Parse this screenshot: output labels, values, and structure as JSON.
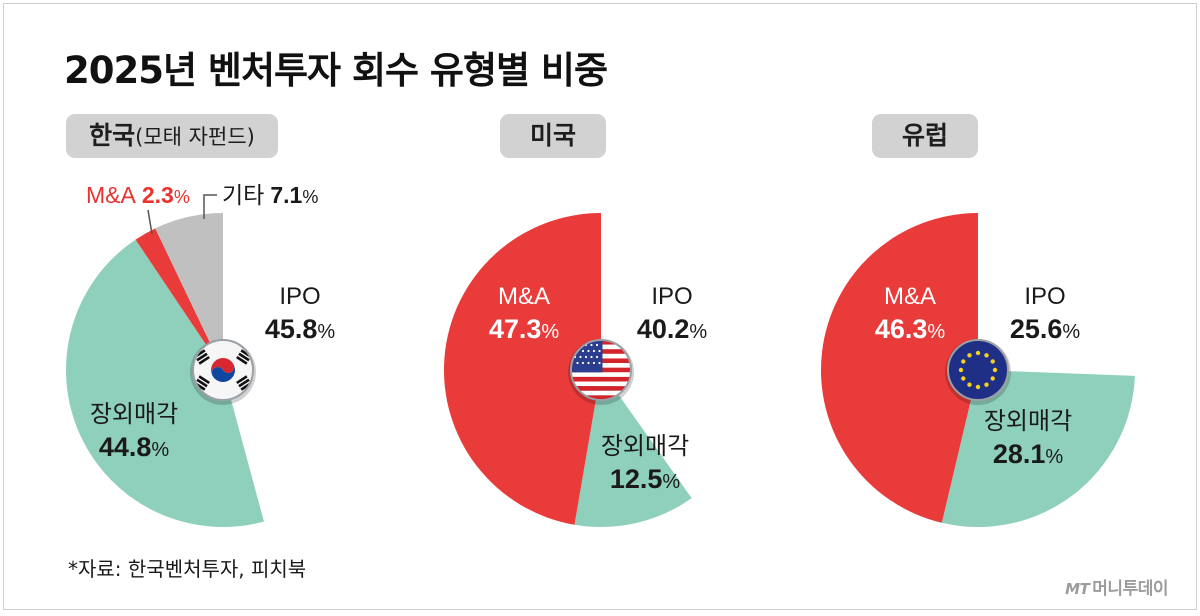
{
  "title": "2025년 벤처투자 회수 유형별 비중",
  "source": "*자료: 한국벤처투자, 피치북",
  "logo": {
    "mark": "MT",
    "name": "머니투데이"
  },
  "colors": {
    "IPO": "#ffffff",
    "M&A": "#ea3b3b",
    "장외매각": "#8fd0bc",
    "기타": "#c0c0c0",
    "pct_red": "#e8332f"
  },
  "chart_data": [
    {
      "type": "pie",
      "region": "한국",
      "region_note": "(모태 자펀드)",
      "flag": "korea-flag-icon",
      "slices": [
        {
          "name": "IPO",
          "value": 45.8
        },
        {
          "name": "장외매각",
          "value": 44.8
        },
        {
          "name": "M&A",
          "value": 2.3
        },
        {
          "name": "기타",
          "value": 7.1
        }
      ]
    },
    {
      "type": "pie",
      "region": "미국",
      "region_note": "",
      "flag": "usa-flag-icon",
      "slices": [
        {
          "name": "IPO",
          "value": 40.2
        },
        {
          "name": "장외매각",
          "value": 12.5
        },
        {
          "name": "M&A",
          "value": 47.3
        }
      ]
    },
    {
      "type": "pie",
      "region": "유럽",
      "region_note": "",
      "flag": "eu-flag-icon",
      "slices": [
        {
          "name": "IPO",
          "value": 25.6
        },
        {
          "name": "장외매각",
          "value": 28.1
        },
        {
          "name": "M&A",
          "value": 46.3
        }
      ]
    }
  ]
}
